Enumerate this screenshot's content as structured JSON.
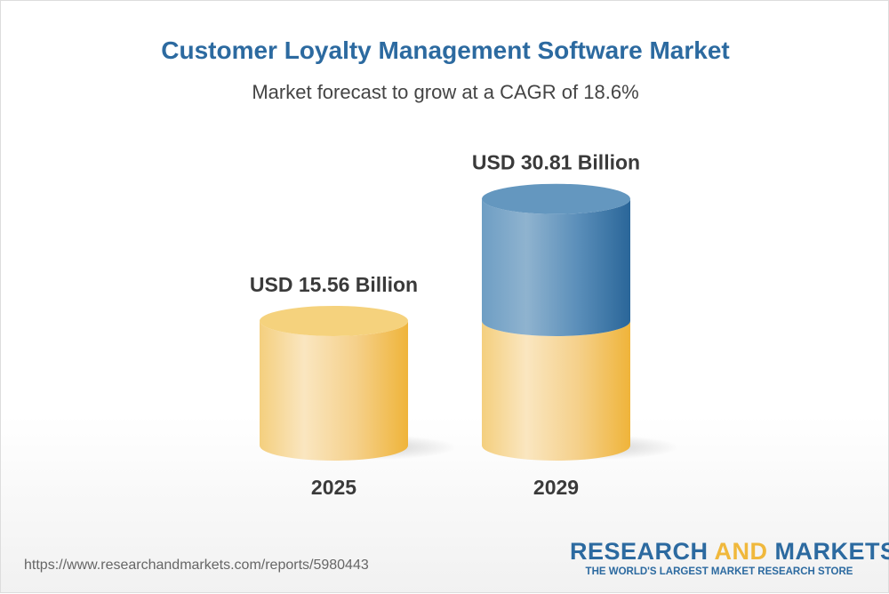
{
  "header": {
    "title": "Customer Loyalty Management Software Market",
    "subtitle": "Market forecast to grow at a CAGR of 18.6%"
  },
  "chart_data": {
    "type": "bar",
    "style": "3d-cylinder",
    "categories": [
      "2025",
      "2029"
    ],
    "values": [
      15.56,
      30.81
    ],
    "data_labels": [
      "USD 15.56 Billion",
      "USD 30.81 Billion"
    ],
    "unit": "USD Billion",
    "colors": {
      "base": "#f0b83c",
      "growth": "#2c6aa0"
    },
    "grid": false,
    "legend": "none"
  },
  "footer": {
    "url": "https://www.researchandmarkets.com/reports/5980443",
    "logo_part1": "RESEARCH ",
    "logo_part2": "AND",
    "logo_part3": " MARKETS",
    "tagline": "THE WORLD'S LARGEST MARKET RESEARCH STORE"
  }
}
